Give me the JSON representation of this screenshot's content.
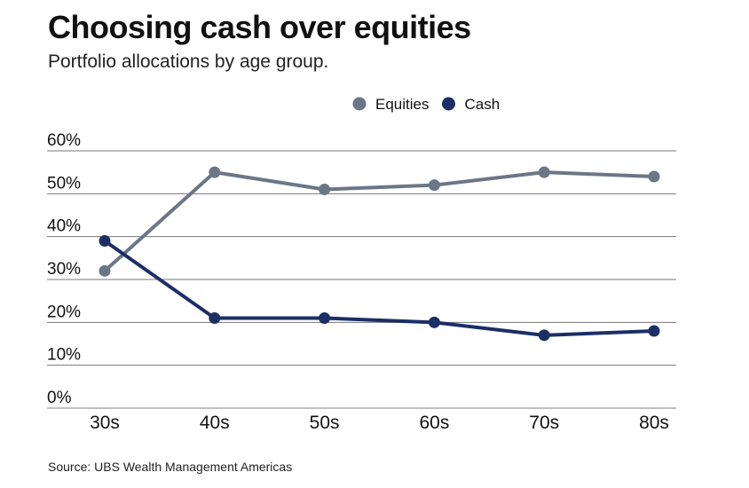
{
  "chart_data": {
    "type": "line",
    "title": "Choosing cash over equities",
    "subtitle": "Portfolio allocations by age group.",
    "source": "Source: UBS Wealth Management Americas",
    "categories": [
      "30s",
      "40s",
      "50s",
      "60s",
      "70s",
      "80s"
    ],
    "ylim": [
      0,
      60
    ],
    "yticks": [
      0,
      10,
      20,
      30,
      40,
      50,
      60
    ],
    "ytick_labels": [
      "0%",
      "10%",
      "20%",
      "30%",
      "40%",
      "50%",
      "60%"
    ],
    "grid": true,
    "legend_position": "top-center",
    "series": [
      {
        "name": "Equities",
        "color": "#6b7686",
        "values": [
          32,
          55,
          51,
          52,
          55,
          54
        ]
      },
      {
        "name": "Cash",
        "color": "#1b2f66",
        "values": [
          39,
          21,
          21,
          20,
          17,
          18
        ]
      }
    ]
  }
}
